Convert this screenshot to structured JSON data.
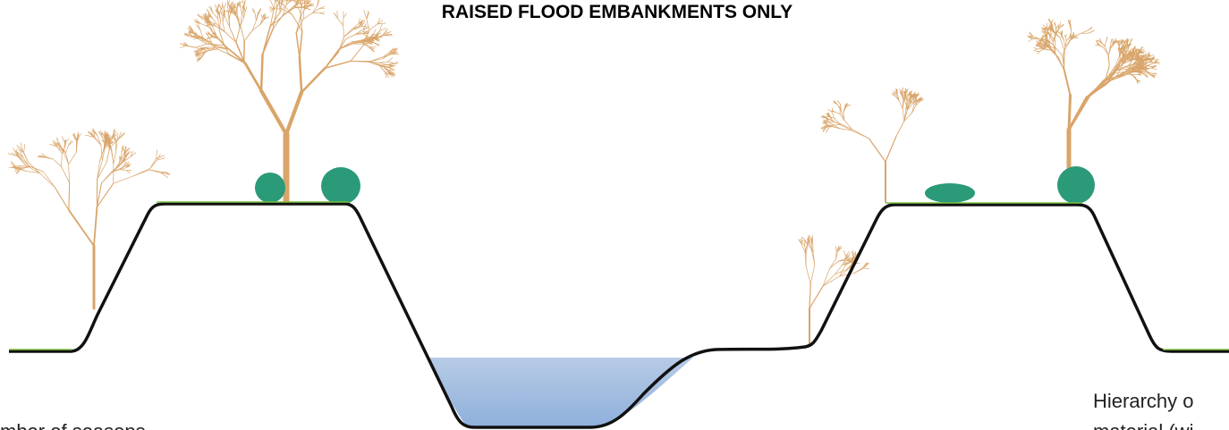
{
  "title": "RAISED FLOOD EMBANKMENTS ONLY",
  "annotations": [
    "mber of seasons",
    "Hierarchy o",
    "material (wi"
  ]
}
